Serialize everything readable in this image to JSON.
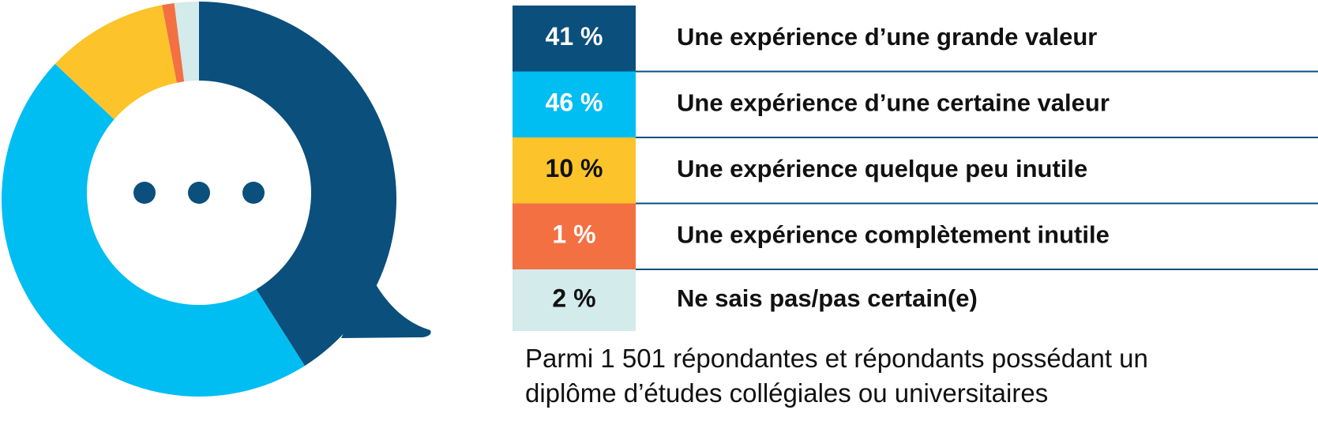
{
  "chart_data": {
    "type": "pie",
    "categories": [
      "Une expérience d’une grande valeur",
      "Une expérience d’une certaine valeur",
      "Une expérience quelque peu inutile",
      "Une expérience complètement inutile",
      "Ne sais pas/pas certain(e)"
    ],
    "values": [
      41,
      46,
      10,
      1,
      2
    ],
    "value_labels": [
      "41 %",
      "46 %",
      "10 %",
      "1 %",
      "2 %"
    ],
    "colors": [
      "#0b4f7c",
      "#00bdf2",
      "#fcc42a",
      "#f37042",
      "#d3ebea"
    ],
    "note": "Parmi 1 501 répondantes et répondants possédant un diplôme d’études collégiales ou universitaires"
  }
}
